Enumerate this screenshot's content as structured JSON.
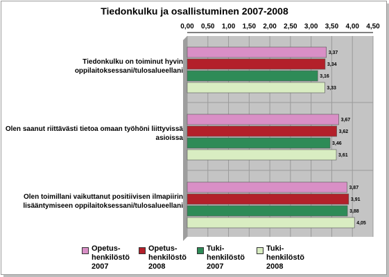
{
  "chart_data": {
    "type": "bar",
    "orientation": "horizontal",
    "title": "Tiedonkulku ja osallistuminen 2007-2008",
    "xlim": [
      0,
      4.5
    ],
    "ticks": [
      "0,00",
      "0,50",
      "1,00",
      "1,50",
      "2,00",
      "2,50",
      "3,00",
      "3,50",
      "4,00",
      "4,50"
    ],
    "tick_values": [
      0,
      0.5,
      1,
      1.5,
      2,
      2.5,
      3,
      3.5,
      4,
      4.5
    ],
    "grid": true,
    "legend_position": "bottom",
    "categories": [
      [
        "Tiedonkulku on toiminut hyvin",
        "oppilaitoksessani/tulosalueellani"
      ],
      [
        "Olen saanut riittävästi tietoa omaan työhöni liittyvissä",
        "asioissa"
      ],
      [
        "Olen toimillani vaikuttanut positiivisen ilmapiirin",
        "lisääntymiseen oppilaitoksessani/tulosalueellani"
      ]
    ],
    "series": [
      {
        "name": "Opetus-\nhenkilöstö\n2007",
        "color": "#d98fc6",
        "values": [
          3.37,
          3.67,
          3.87
        ],
        "labels": [
          "3,37",
          "3,67",
          "3,87"
        ]
      },
      {
        "name": "Opetus-\nhenkilöstö\n2008",
        "color": "#b3202a",
        "values": [
          3.34,
          3.62,
          3.91
        ],
        "labels": [
          "3,34",
          "3,62",
          "3,91"
        ]
      },
      {
        "name": "Tuki-\nhenkilöstö\n2007",
        "color": "#2e8b57",
        "values": [
          3.16,
          3.46,
          3.88
        ],
        "labels": [
          "3,16",
          "3,46",
          "3,88"
        ]
      },
      {
        "name": "Tuki-\nhenkilöstö\n2008",
        "color": "#d9edc2",
        "values": [
          3.33,
          3.61,
          4.05
        ],
        "labels": [
          "3,33",
          "3,61",
          "4,05"
        ]
      }
    ]
  }
}
